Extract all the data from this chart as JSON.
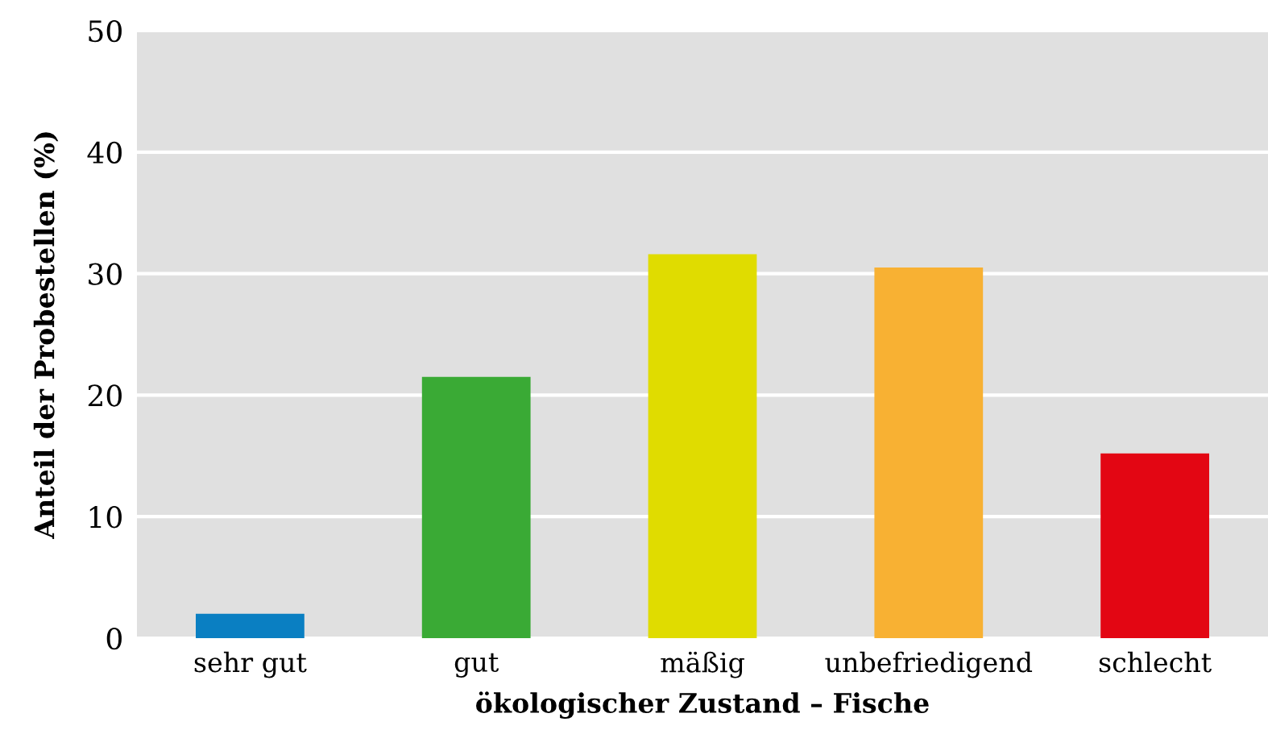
{
  "chart_data": {
    "type": "bar",
    "xlabel": "ökologischer Zustand – Fische",
    "ylabel": "Anteil der Probestellen (%)",
    "categories": [
      "sehr gut",
      "gut",
      "mäßig",
      "unbefriedigend",
      "schlecht"
    ],
    "values": [
      2.0,
      21.5,
      31.6,
      30.5,
      15.2
    ],
    "colors": [
      "#0a7fc2",
      "#3aaa35",
      "#e0dc00",
      "#f8b133",
      "#e30613"
    ],
    "ylim": [
      0,
      50
    ],
    "yticks": [
      0,
      10,
      20,
      30,
      40,
      50
    ],
    "grid": "y"
  }
}
